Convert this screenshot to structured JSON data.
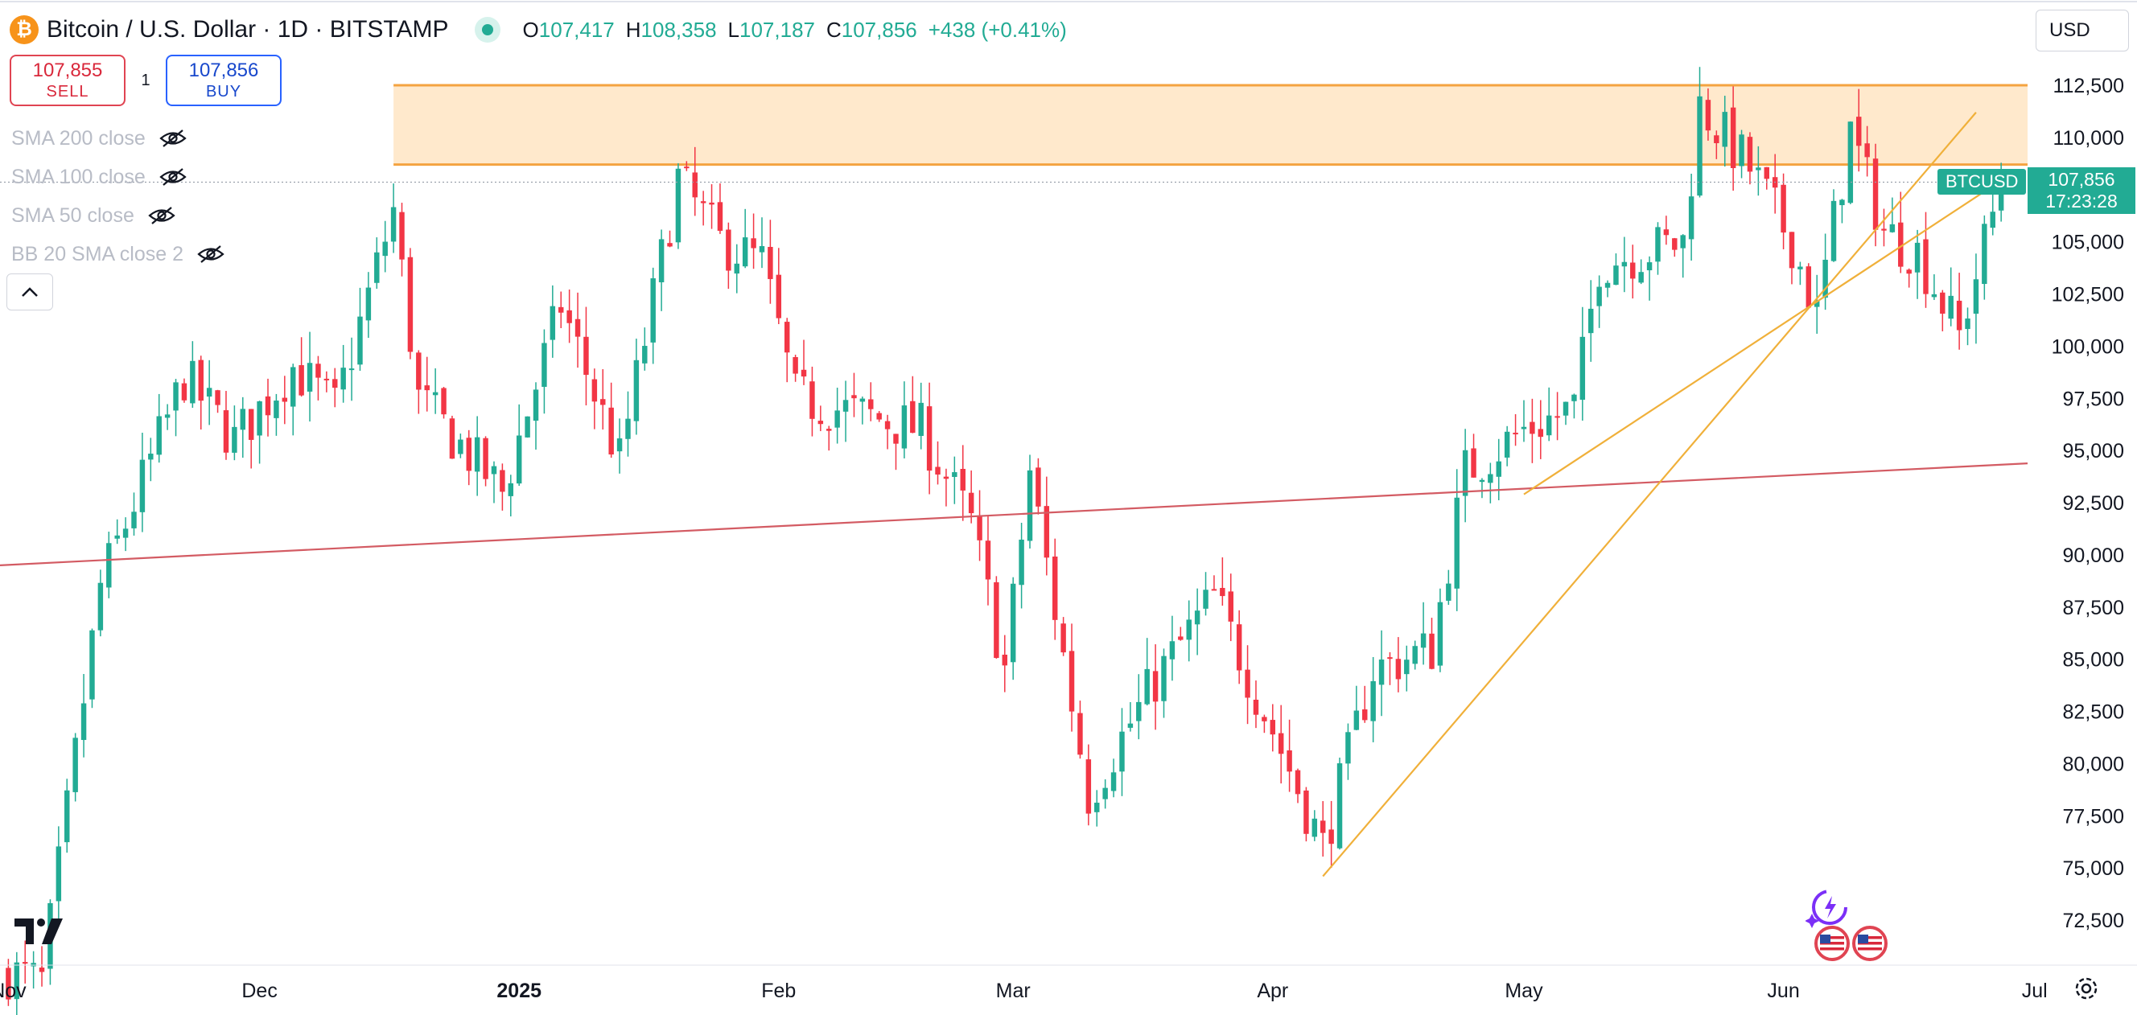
{
  "header": {
    "logo_glyph": "₿",
    "title": "Bitcoin / U.S. Dollar · 1D · BITSTAMP",
    "ohlc": {
      "o_label": "O",
      "o": "107,417",
      "h_label": "H",
      "h": "108,358",
      "l_label": "L",
      "l": "107,187",
      "c_label": "C",
      "c": "107,856"
    },
    "change": "+438 (+0.41%)"
  },
  "trade": {
    "sell_price": "107,855",
    "sell_label": "SELL",
    "spread": "1",
    "buy_price": "107,856",
    "buy_label": "BUY"
  },
  "indicators": [
    {
      "label": "SMA 200 close"
    },
    {
      "label": "SMA 100 close"
    },
    {
      "label": "SMA 50 close"
    },
    {
      "label": "BB 20 SMA close 2"
    }
  ],
  "currency": "USD",
  "last_price": {
    "symbol": "BTCUSD",
    "price": "107,856",
    "countdown": "17:23:28"
  },
  "colors": {
    "up": "#22ab94",
    "down": "#f23645",
    "zone_fill": "#ffe9cc",
    "zone_line": "#f4a340",
    "trend": "#f0b03a",
    "support": "#d35b63"
  },
  "chart_data": {
    "type": "candlestick",
    "title": "Bitcoin / U.S. Dollar · 1D · BITSTAMP",
    "y_ticks": [
      "112,500",
      "110,000",
      "107,500",
      "105,000",
      "102,500",
      "100,000",
      "97,500",
      "95,000",
      "92,500",
      "90,000",
      "87,500",
      "85,000",
      "82,500",
      "80,000",
      "77,500",
      "75,000",
      "72,500"
    ],
    "ylim": [
      71000,
      114000
    ],
    "x_ticks": [
      {
        "label": "Nov",
        "date": "2024-11-01",
        "bold": false
      },
      {
        "label": "Dec",
        "date": "2024-12-01",
        "bold": false
      },
      {
        "label": "2025",
        "date": "2025-01-01",
        "bold": true
      },
      {
        "label": "Feb",
        "date": "2025-02-01",
        "bold": false
      },
      {
        "label": "Mar",
        "date": "2025-03-01",
        "bold": false
      },
      {
        "label": "Apr",
        "date": "2025-04-01",
        "bold": false
      },
      {
        "label": "May",
        "date": "2025-05-01",
        "bold": false
      },
      {
        "label": "Jun",
        "date": "2025-06-01",
        "bold": false
      },
      {
        "label": "Jul",
        "date": "2025-07-01",
        "bold": false
      }
    ],
    "resistance_zone": {
      "top": 112500,
      "bottom": 108700
    },
    "trendlines": [
      {
        "name": "support-line",
        "from": [
          "2024-10-31",
          89500
        ],
        "to": [
          "2025-07-06",
          94500
        ]
      },
      {
        "name": "steep-trendline",
        "from": [
          "2025-04-07",
          74600
        ],
        "to": [
          "2025-06-24",
          111200
        ]
      },
      {
        "name": "shallow-trendline",
        "from": [
          "2025-05-01",
          92900
        ],
        "to": [
          "2025-06-28",
          108200
        ]
      }
    ],
    "series": [
      {
        "name": "BTCUSD daily",
        "anchors": [
          [
            "2024-11-01",
            70000
          ],
          [
            "2024-11-05",
            69500
          ],
          [
            "2024-11-12",
            88500
          ],
          [
            "2024-11-22",
            98500
          ],
          [
            "2024-11-28",
            95500
          ],
          [
            "2024-12-05",
            99000
          ],
          [
            "2024-12-10",
            97000
          ],
          [
            "2024-12-17",
            106500
          ],
          [
            "2024-12-20",
            97500
          ],
          [
            "2024-12-30",
            93000
          ],
          [
            "2025-01-06",
            102000
          ],
          [
            "2025-01-13",
            94500
          ],
          [
            "2025-01-20",
            108000
          ],
          [
            "2025-01-25",
            105000
          ],
          [
            "2025-01-30",
            104000
          ],
          [
            "2025-02-03",
            97500
          ],
          [
            "2025-02-18",
            96000
          ],
          [
            "2025-02-24",
            91500
          ],
          [
            "2025-02-28",
            84500
          ],
          [
            "2025-03-03",
            94000
          ],
          [
            "2025-03-10",
            78500
          ],
          [
            "2025-03-18",
            84000
          ],
          [
            "2025-03-25",
            88000
          ],
          [
            "2025-03-31",
            82500
          ],
          [
            "2025-04-07",
            76000
          ],
          [
            "2025-04-13",
            84500
          ],
          [
            "2025-04-20",
            85500
          ],
          [
            "2025-04-24",
            94000
          ],
          [
            "2025-05-01",
            96000
          ],
          [
            "2025-05-07",
            97000
          ],
          [
            "2025-05-10",
            104000
          ],
          [
            "2025-05-20",
            105000
          ],
          [
            "2025-05-22",
            111500
          ],
          [
            "2025-05-28",
            108500
          ],
          [
            "2025-06-02",
            105000
          ],
          [
            "2025-06-05",
            101500
          ],
          [
            "2025-06-09",
            110300
          ],
          [
            "2025-06-13",
            105500
          ],
          [
            "2025-06-17",
            104500
          ],
          [
            "2025-06-22",
            100500
          ],
          [
            "2025-06-27",
            107800
          ]
        ]
      }
    ]
  }
}
